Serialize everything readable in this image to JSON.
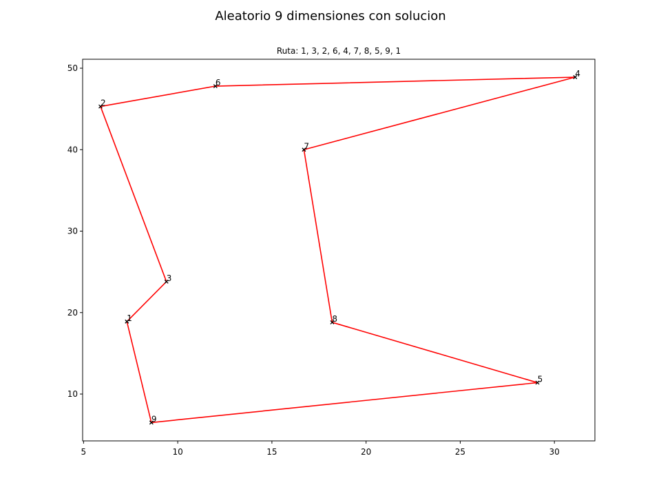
{
  "chart_data": {
    "type": "line",
    "title": "Aleatorio 9 dimensiones con solucion",
    "subtitle": "Ruta: 1, 3, 2, 6, 4, 7, 8, 5, 9, 1",
    "xlabel": "",
    "ylabel": "",
    "xlim": [
      4.95,
      32.15
    ],
    "ylim": [
      4.25,
      51.1
    ],
    "xticks": [
      5,
      10,
      15,
      20,
      25,
      30
    ],
    "yticks": [
      10,
      20,
      30,
      40,
      50
    ],
    "grid": false,
    "line_color": "#ff0000",
    "marker_color": "#000000",
    "points": [
      {
        "label": "1",
        "x": 7.3,
        "y": 18.9
      },
      {
        "label": "2",
        "x": 5.9,
        "y": 45.3
      },
      {
        "label": "3",
        "x": 9.4,
        "y": 23.8
      },
      {
        "label": "4",
        "x": 31.1,
        "y": 48.9
      },
      {
        "label": "5",
        "x": 29.1,
        "y": 11.4
      },
      {
        "label": "6",
        "x": 12.0,
        "y": 47.8
      },
      {
        "label": "7",
        "x": 16.7,
        "y": 40.0
      },
      {
        "label": "8",
        "x": 18.2,
        "y": 18.8
      },
      {
        "label": "9",
        "x": 8.6,
        "y": 6.5
      }
    ],
    "route": [
      1,
      3,
      2,
      6,
      4,
      7,
      8,
      5,
      9,
      1
    ]
  }
}
